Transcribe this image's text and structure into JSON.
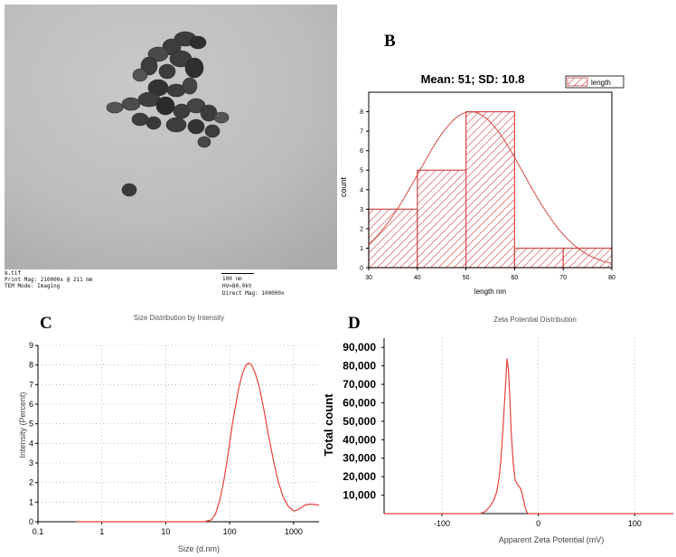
{
  "panels": {
    "a": "A",
    "b": "B",
    "c": "C",
    "d": "D"
  },
  "tem": {
    "file_name": "8.tif",
    "print_mag": "Print Mag: 210000x @ 211 mm",
    "tem_mode": "TEM Mode: Imaging",
    "scale_bar": "100 nm",
    "hv": "HV=80.0kV",
    "direct_mag": "Direct Mag: 100000x"
  },
  "chart_data": [
    {
      "id": "B",
      "type": "bar",
      "title": "Mean: 51; SD: 10.8",
      "xlabel": "length nm",
      "ylabel": "count",
      "legend": "length",
      "legend_position": "top-right",
      "x_ticks": [
        "30",
        "40",
        "50",
        "60",
        "70",
        "80"
      ],
      "y_ticks": [
        "0",
        "1",
        "2",
        "3",
        "4",
        "5",
        "6",
        "7",
        "8"
      ],
      "xlim": [
        30,
        80
      ],
      "ylim": [
        0,
        9
      ],
      "bins": [
        [
          30,
          40
        ],
        [
          40,
          50
        ],
        [
          50,
          60
        ],
        [
          60,
          70
        ],
        [
          70,
          80
        ]
      ],
      "values": [
        3,
        5,
        8,
        1,
        1
      ],
      "fit_curve": {
        "type": "normal",
        "mean": 51,
        "sd": 10.8,
        "peak": 8
      },
      "bar_color": "#d44a4a"
    },
    {
      "id": "C",
      "type": "line",
      "title": "Size Distribution by Intensity",
      "xlabel": "Size (d.nm)",
      "ylabel": "Intensity (Percent)",
      "x_scale": "log",
      "x_ticks": [
        "0.1",
        "1",
        "10",
        "100",
        "1000"
      ],
      "y_ticks": [
        "0",
        "1",
        "2",
        "3",
        "4",
        "5",
        "6",
        "7",
        "8",
        "9"
      ],
      "xlim": [
        0.1,
        2500
      ],
      "ylim": [
        0,
        9
      ],
      "grid": "dotted",
      "series": [
        {
          "color": "#e8413b",
          "x": [
            0.4,
            1,
            10,
            40,
            52,
            60,
            70,
            80,
            90,
            100,
            110,
            125,
            140,
            160,
            180,
            200,
            220,
            250,
            290,
            340,
            400,
            480,
            570,
            680,
            820,
            1000,
            1150,
            1300,
            1500,
            1800,
            2100,
            2500
          ],
          "y": [
            0,
            0,
            0,
            0,
            0.1,
            0.4,
            1.1,
            2.0,
            3.0,
            4.0,
            5.0,
            6.0,
            6.9,
            7.6,
            8.0,
            8.1,
            8.0,
            7.6,
            6.9,
            5.8,
            4.5,
            3.2,
            2.1,
            1.3,
            0.8,
            0.55,
            0.6,
            0.7,
            0.85,
            0.9,
            0.88,
            0.85
          ]
        }
      ]
    },
    {
      "id": "D",
      "type": "line",
      "title": "Zeta Potential Distribution",
      "xlabel": "Apparent Zeta Potential (mV)",
      "ylabel": "Total count",
      "x_ticks": [
        "-100",
        "0",
        "100"
      ],
      "y_ticks": [
        "10,000",
        "20,000",
        "30,000",
        "40,000",
        "50,000",
        "60,000",
        "70,000",
        "80,000",
        "90,000"
      ],
      "xlim": [
        -160,
        140
      ],
      "ylim": [
        0,
        95000
      ],
      "grid": "dotted",
      "series": [
        {
          "color": "#e8413b",
          "x": [
            -160,
            -60,
            -55,
            -50,
            -46,
            -43,
            -40,
            -38,
            -36,
            -34,
            -32.5,
            -31,
            -29.5,
            -28,
            -26,
            -24,
            -22,
            -20,
            -18,
            -16,
            -14,
            -12,
            -11,
            -10,
            140
          ],
          "y": [
            0,
            0,
            1200,
            4000,
            7500,
            12000,
            22000,
            35000,
            52000,
            70000,
            84000,
            78000,
            62000,
            43000,
            27000,
            18000,
            16000,
            15000,
            13000,
            9000,
            4000,
            1000,
            300,
            0,
            0
          ]
        }
      ]
    }
  ]
}
